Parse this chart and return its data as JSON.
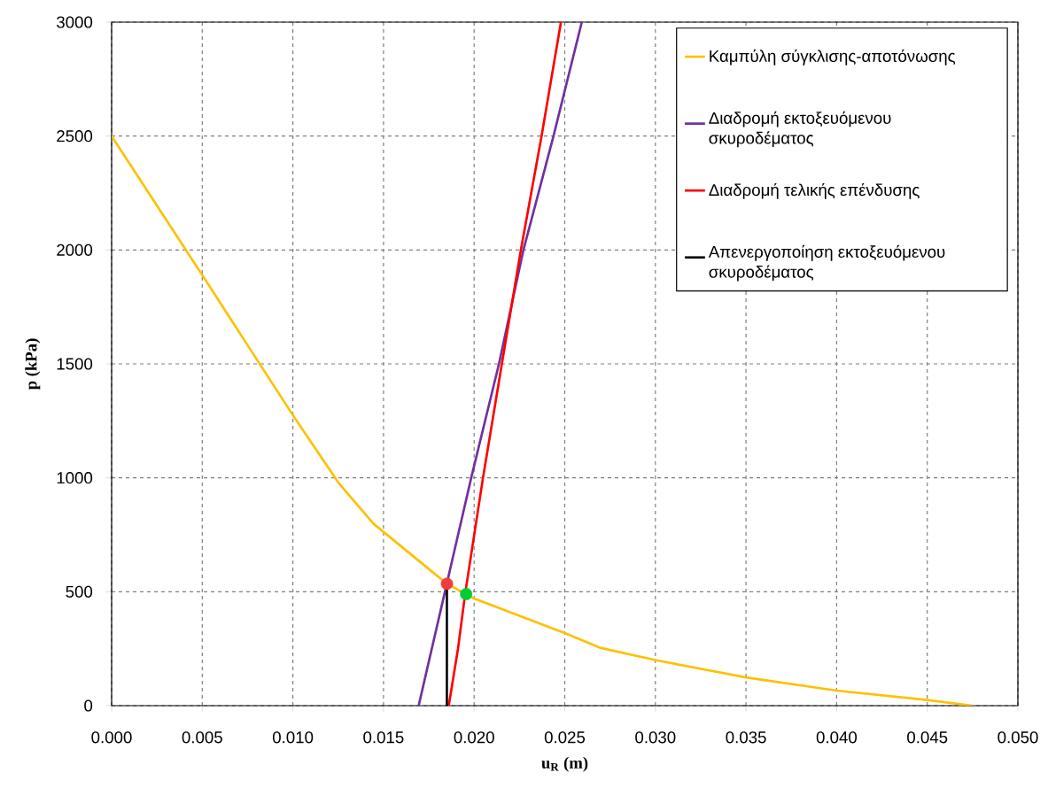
{
  "chart_data": {
    "type": "line",
    "xlabel": "u$_{R}$ (m)",
    "ylabel": "p (kPa)",
    "xlim": [
      0,
      0.05
    ],
    "ylim": [
      0,
      3000
    ],
    "xticks": [
      {
        "value": 0,
        "label": "0.000"
      },
      {
        "value": 0.005,
        "label": "0.005"
      },
      {
        "value": 0.01,
        "label": "0.010"
      },
      {
        "value": 0.015,
        "label": "0.015"
      },
      {
        "value": 0.02,
        "label": "0.020"
      },
      {
        "value": 0.025,
        "label": "0.025"
      },
      {
        "value": 0.03,
        "label": "0.030"
      },
      {
        "value": 0.035,
        "label": "0.035"
      },
      {
        "value": 0.04,
        "label": "0.040"
      },
      {
        "value": 0.045,
        "label": "0.045"
      },
      {
        "value": 0.05,
        "label": "0.050"
      }
    ],
    "yticks": [
      0,
      500,
      1000,
      1500,
      2000,
      2500,
      3000
    ],
    "grid": true,
    "legend": "top right",
    "series": [
      {
        "name": "Καμπύλη σύγκλισης-αποτόνωσης",
        "color": "#ffc000",
        "x": [
          0,
          0.0025,
          0.005,
          0.0075,
          0.01,
          0.0125,
          0.01444,
          0.0175,
          0.0185,
          0.02,
          0.025,
          0.027,
          0.03,
          0.035,
          0.04,
          0.045,
          0.0475
        ],
        "values": [
          2500,
          2195,
          1890,
          1582,
          1275,
          980,
          799,
          600,
          535,
          470,
          319,
          253,
          200,
          124,
          66,
          25,
          0
        ]
      },
      {
        "name": "Διαδρομή εκτοξευόμενου σκυροδέματος",
        "color": "#7030a0",
        "x": [
          0.01694,
          0.01839,
          0.01984,
          0.02137,
          0.02272,
          0.02438,
          0.02594
        ],
        "values": [
          0,
          500,
          1000,
          1500,
          2000,
          2500,
          3000
        ]
      },
      {
        "name": "Διαδρομή τελικής επένδυσης",
        "color": "#ff0000",
        "x": [
          0.0186,
          0.01911,
          0.01952,
          0.02049,
          0.02153,
          0.02258,
          0.02372,
          0.02479
        ],
        "values": [
          0,
          250,
          500,
          1000,
          1500,
          2000,
          2500,
          3000
        ]
      },
      {
        "name": "Απενεργοποίηση εκτοξευόμενου σκυροδέματος",
        "color": "#000000",
        "x": [
          0.0185,
          0.0185
        ],
        "values": [
          0,
          535
        ]
      },
      {
        "type": "scatter",
        "marker": "circle",
        "color": "#f03c3c",
        "x": [
          0.0185
        ],
        "values": [
          535
        ]
      },
      {
        "type": "scatter",
        "marker": "circle",
        "color": "#00cc33",
        "x": [
          0.01956
        ],
        "values": [
          490
        ]
      }
    ]
  }
}
